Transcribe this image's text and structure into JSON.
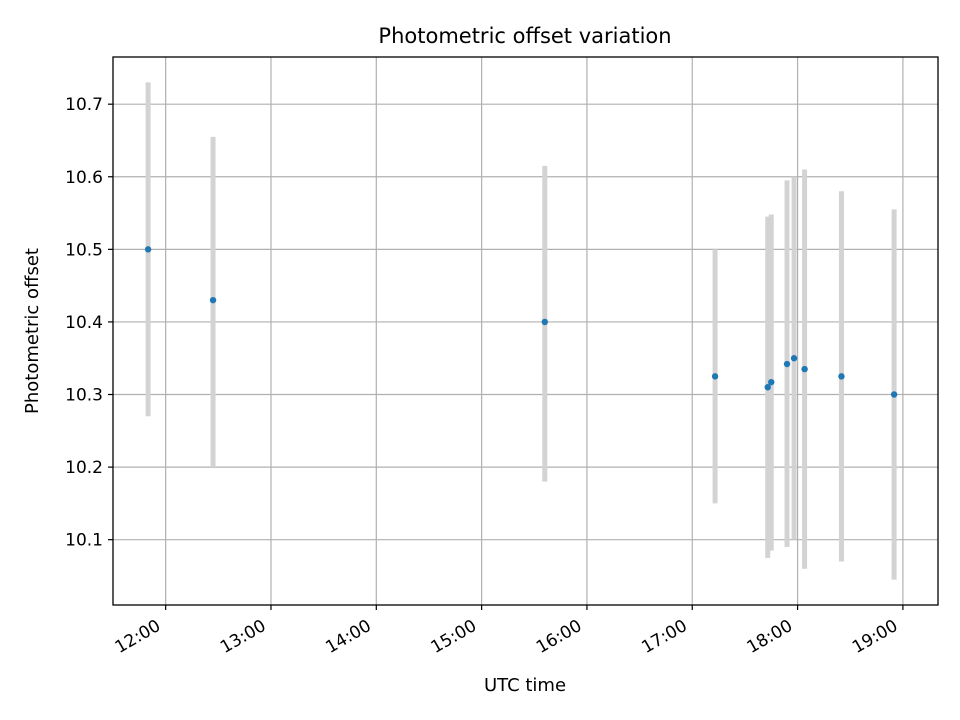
{
  "chart_data": {
    "type": "scatter",
    "title": "Photometric offset variation",
    "xlabel": "UTC time",
    "ylabel": "Photometric offset",
    "x_tick_labels": [
      "12:00",
      "13:00",
      "14:00",
      "15:00",
      "16:00",
      "17:00",
      "18:00",
      "19:00"
    ],
    "y_tick_labels": [
      "10.1",
      "10.2",
      "10.3",
      "10.4",
      "10.5",
      "10.6",
      "10.7"
    ],
    "y_ticks": [
      10.1,
      10.2,
      10.3,
      10.4,
      10.5,
      10.6,
      10.7
    ],
    "xlim": [
      "11:30",
      "19:20"
    ],
    "ylim": [
      10.01,
      10.765
    ],
    "grid": true,
    "series": [
      {
        "marker_color": "#1f77b4",
        "errorbar_color": "#d3d3d3",
        "points": [
          {
            "x": "11:50",
            "y": 10.5,
            "err_low": 10.27,
            "err_high": 10.73
          },
          {
            "x": "12:27",
            "y": 10.43,
            "err_low": 10.2,
            "err_high": 10.655
          },
          {
            "x": "15:36",
            "y": 10.4,
            "err_low": 10.18,
            "err_high": 10.615
          },
          {
            "x": "17:13",
            "y": 10.325,
            "err_low": 10.15,
            "err_high": 10.5
          },
          {
            "x": "17:43",
            "y": 10.31,
            "err_low": 10.075,
            "err_high": 10.545
          },
          {
            "x": "17:45",
            "y": 10.317,
            "err_low": 10.085,
            "err_high": 10.548
          },
          {
            "x": "17:54",
            "y": 10.342,
            "err_low": 10.09,
            "err_high": 10.595
          },
          {
            "x": "17:58",
            "y": 10.35,
            "err_low": 10.1,
            "err_high": 10.6
          },
          {
            "x": "18:04",
            "y": 10.335,
            "err_low": 10.06,
            "err_high": 10.61
          },
          {
            "x": "18:25",
            "y": 10.325,
            "err_low": 10.07,
            "err_high": 10.58
          },
          {
            "x": "18:55",
            "y": 10.3,
            "err_low": 10.045,
            "err_high": 10.555
          }
        ]
      }
    ]
  }
}
